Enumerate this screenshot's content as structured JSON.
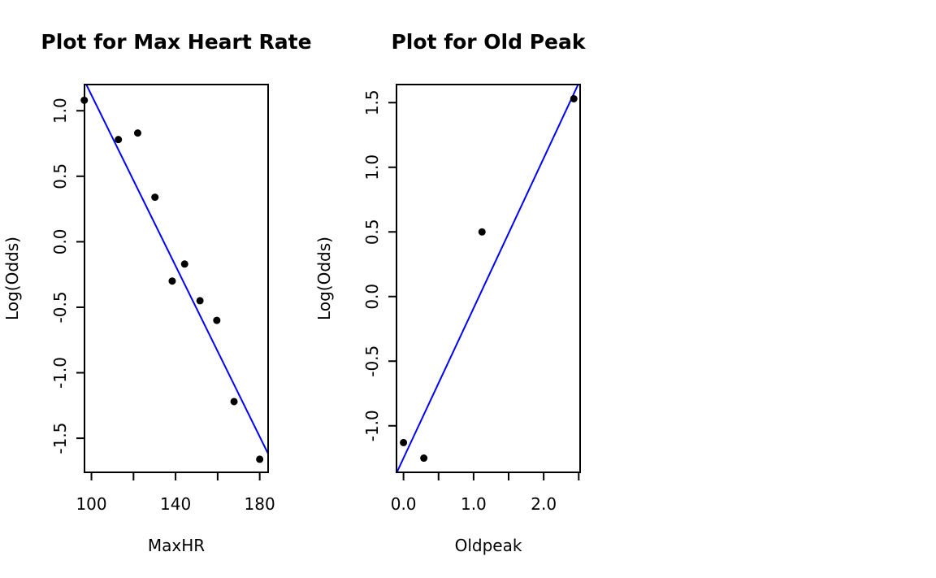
{
  "chart_data": [
    {
      "type": "scatter",
      "title": "Plot for Max Heart Rate",
      "xlabel": "MaxHR",
      "ylabel": "Log(Odds)",
      "xlim": [
        96.7,
        184
      ],
      "ylim": [
        -1.76,
        1.2
      ],
      "xticks": [
        100,
        120,
        140,
        160,
        180
      ],
      "xtick_labels": [
        "100",
        "",
        "140",
        "",
        "180"
      ],
      "yticks": [
        -1.5,
        -1.0,
        -0.5,
        0.0,
        0.5,
        1.0
      ],
      "ytick_labels": [
        "-1.5",
        "-1.0",
        "-0.5",
        "0.0",
        "0.5",
        "1.0"
      ],
      "series": [
        {
          "x": [
            96.6,
            112.8,
            122.0,
            130.2,
            138.4,
            144.3,
            151.6,
            159.6,
            167.8,
            180.0
          ],
          "y": [
            1.08,
            0.78,
            0.83,
            0.34,
            -0.3,
            -0.17,
            -0.45,
            -0.6,
            -1.22,
            -1.66
          ]
        }
      ],
      "fit_line": {
        "slope": -0.0326,
        "intercept": 4.38
      },
      "point_color": "#000000",
      "line_color": "#0000ff"
    },
    {
      "type": "scatter",
      "title": "Plot for Old Peak",
      "xlabel": "Oldpeak",
      "ylabel": "Log(Odds)",
      "xlim": [
        -0.1,
        2.52
      ],
      "ylim": [
        -1.36,
        1.64
      ],
      "xticks": [
        0.0,
        0.5,
        1.0,
        1.5,
        2.0,
        2.5
      ],
      "xtick_labels": [
        "0.0",
        "",
        "1.0",
        "",
        "2.0",
        ""
      ],
      "yticks": [
        -1.0,
        -0.5,
        0.0,
        0.5,
        1.0,
        1.5
      ],
      "ytick_labels": [
        "-1.0",
        "-0.5",
        "0.0",
        "0.5",
        "1.0",
        "1.5"
      ],
      "series": [
        {
          "x": [
            0.0,
            0.29,
            1.12,
            2.43
          ],
          "y": [
            -1.13,
            -1.25,
            0.5,
            1.53
          ]
        }
      ],
      "fit_line": {
        "slope": 1.16,
        "intercept": -1.25
      },
      "point_color": "#000000",
      "line_color": "#0000ff"
    }
  ]
}
